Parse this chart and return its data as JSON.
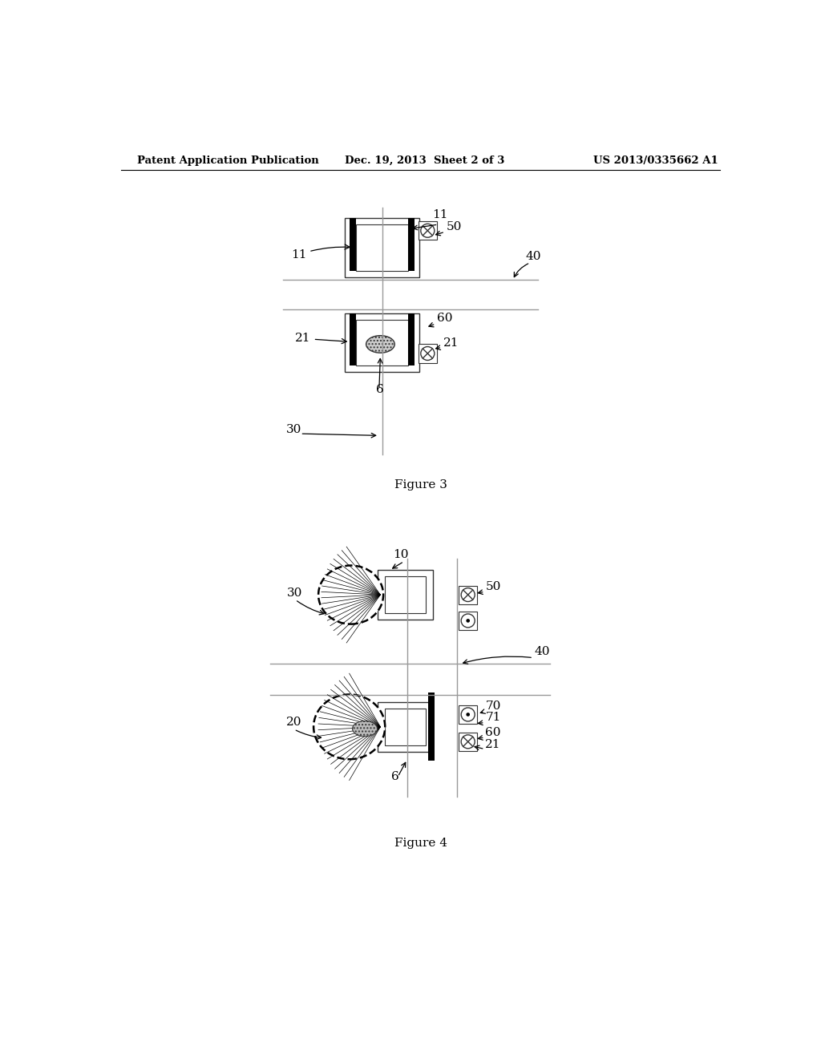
{
  "bg_color": "#ffffff",
  "header_left": "Patent Application Publication",
  "header_center": "Dec. 19, 2013  Sheet 2 of 3",
  "header_right": "US 2013/0335662 A1",
  "fig3_caption": "Figure 3",
  "fig4_caption": "Figure 4",
  "lc": "#333333",
  "glc": "#999999"
}
